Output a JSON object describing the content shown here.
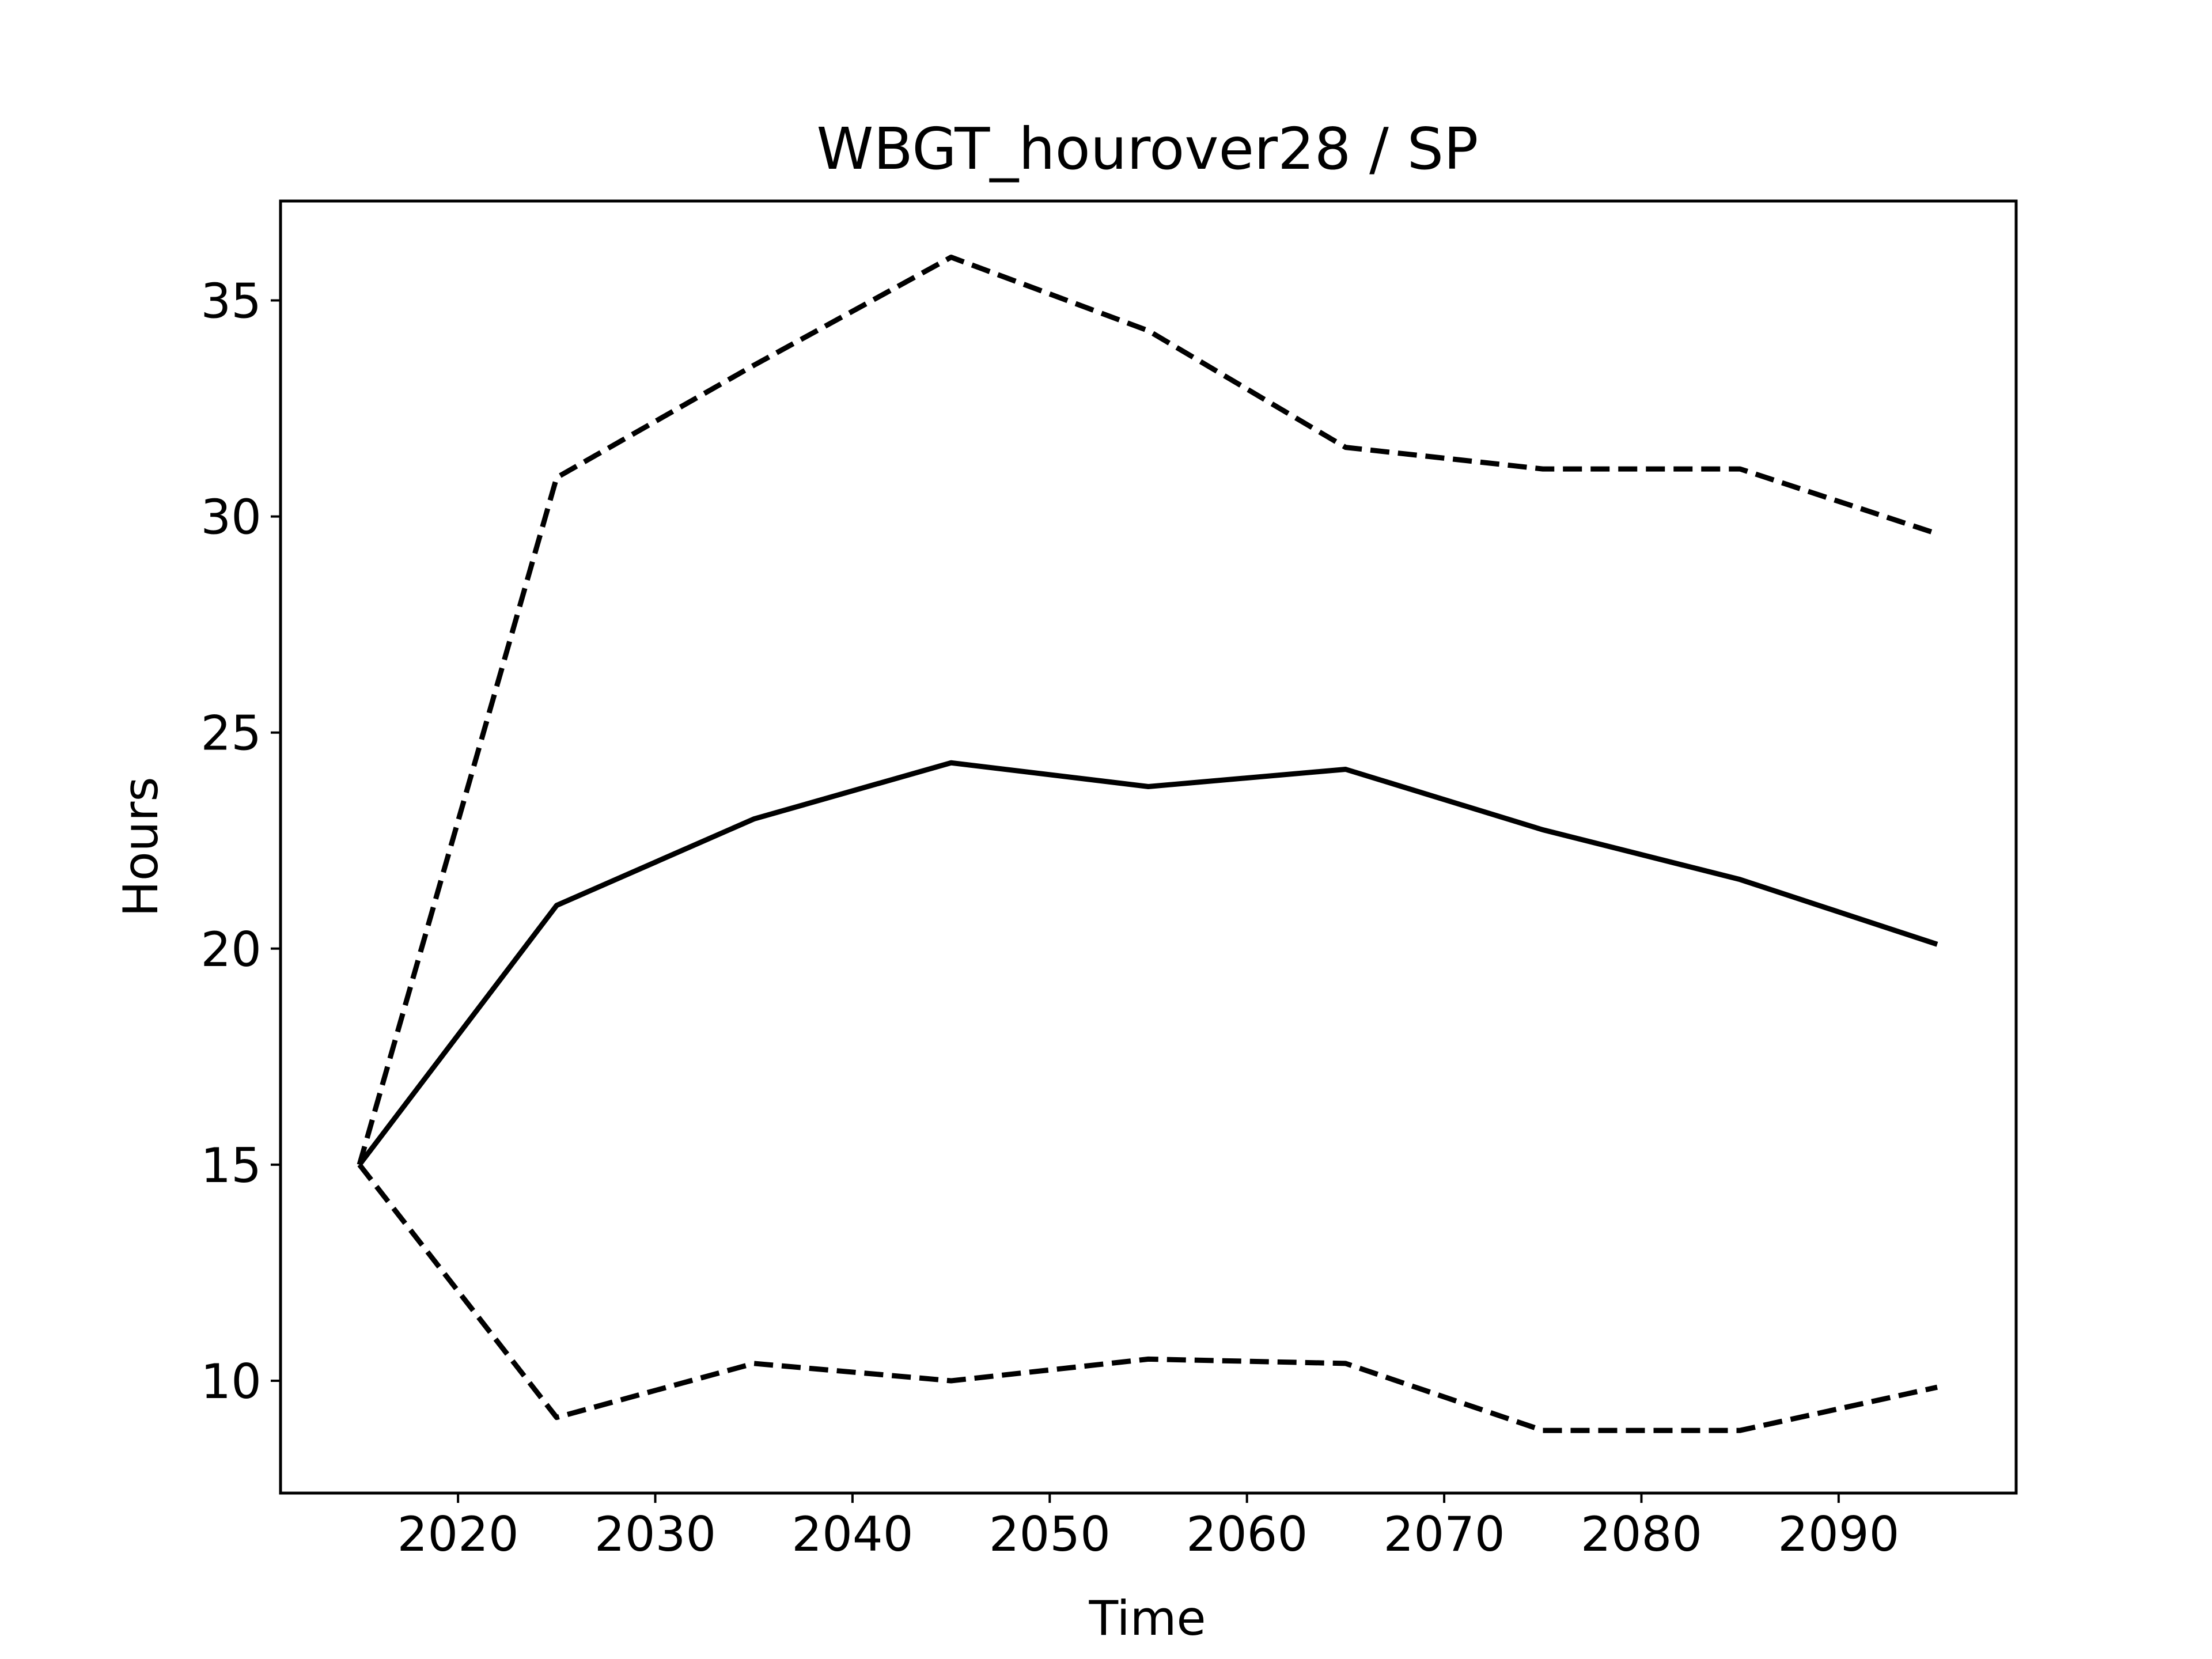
{
  "chart_data": {
    "type": "line",
    "title": "WBGT_hourover28 / SP",
    "xlabel": "Time",
    "ylabel": "Hours",
    "xlim": [
      2011,
      2099
    ],
    "ylim": [
      7.4,
      37.3
    ],
    "x_ticks": [
      2020,
      2030,
      2040,
      2050,
      2060,
      2070,
      2080,
      2090
    ],
    "y_ticks": [
      10,
      15,
      20,
      25,
      30,
      35
    ],
    "grid": false,
    "legend": "none",
    "x": [
      2015,
      2025,
      2035,
      2045,
      2055,
      2065,
      2075,
      2085,
      2095
    ],
    "series": [
      {
        "style": "solid",
        "color": "#000000",
        "values": [
          15.0,
          21.0,
          23.0,
          24.3,
          23.75,
          24.15,
          22.75,
          21.6,
          20.1
        ]
      },
      {
        "style": "dashed",
        "color": "#000000",
        "values": [
          15.0,
          30.9,
          33.5,
          36.0,
          34.3,
          31.6,
          31.1,
          31.1,
          29.6
        ]
      },
      {
        "style": "dashed",
        "color": "#000000",
        "values": [
          15.0,
          9.15,
          10.4,
          10.0,
          10.5,
          10.4,
          8.85,
          8.85,
          9.85
        ]
      }
    ]
  }
}
